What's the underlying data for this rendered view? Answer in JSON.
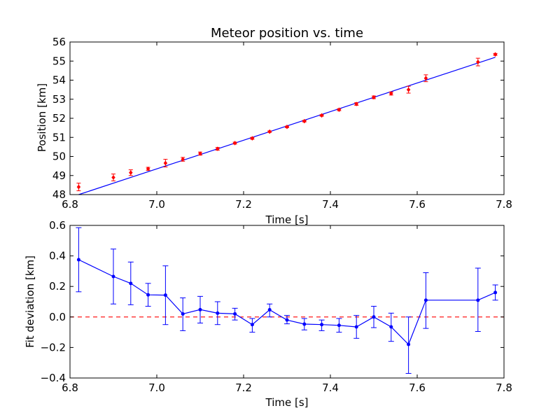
{
  "chart_data": [
    {
      "type": "scatter",
      "title": "Meteor position vs. time",
      "xlabel": "Time [s]",
      "ylabel": "Position [km]",
      "xlim": [
        6.8,
        7.8
      ],
      "ylim": [
        48,
        56
      ],
      "xticks": [
        "6.8",
        "7.0",
        "7.2",
        "7.4",
        "7.6",
        "7.8"
      ],
      "yticks": [
        "48",
        "49",
        "50",
        "51",
        "52",
        "53",
        "54",
        "55",
        "56"
      ],
      "grid": false,
      "colors": {
        "points": "#ff0000",
        "fit": "#0000ff"
      },
      "series": [
        {
          "marker": "red-diamond-with-errorbars",
          "points": [
            {
              "x": 6.82,
              "y": 48.4,
              "err": 0.2
            },
            {
              "x": 6.9,
              "y": 48.9,
              "err": 0.18
            },
            {
              "x": 6.94,
              "y": 49.15,
              "err": 0.15
            },
            {
              "x": 6.98,
              "y": 49.35,
              "err": 0.08
            },
            {
              "x": 7.02,
              "y": 49.65,
              "err": 0.2
            },
            {
              "x": 7.06,
              "y": 49.85,
              "err": 0.1
            },
            {
              "x": 7.1,
              "y": 50.15,
              "err": 0.08
            },
            {
              "x": 7.14,
              "y": 50.4,
              "err": 0.07
            },
            {
              "x": 7.18,
              "y": 50.7,
              "err": 0.05
            },
            {
              "x": 7.22,
              "y": 50.95,
              "err": 0.05
            },
            {
              "x": 7.26,
              "y": 51.3,
              "err": 0.04
            },
            {
              "x": 7.3,
              "y": 51.55,
              "err": 0.04
            },
            {
              "x": 7.34,
              "y": 51.85,
              "err": 0.04
            },
            {
              "x": 7.38,
              "y": 52.15,
              "err": 0.04
            },
            {
              "x": 7.42,
              "y": 52.45,
              "err": 0.05
            },
            {
              "x": 7.46,
              "y": 52.75,
              "err": 0.07
            },
            {
              "x": 7.5,
              "y": 53.1,
              "err": 0.07
            },
            {
              "x": 7.54,
              "y": 53.3,
              "err": 0.08
            },
            {
              "x": 7.58,
              "y": 53.5,
              "err": 0.18
            },
            {
              "x": 7.62,
              "y": 54.1,
              "err": 0.18
            },
            {
              "x": 7.74,
              "y": 54.95,
              "err": 0.2
            },
            {
              "x": 7.78,
              "y": 55.35,
              "err": 0.05
            }
          ]
        },
        {
          "line": "blue-fit-line",
          "x": [
            6.82,
            7.78
          ],
          "y": [
            48.0,
            55.2
          ]
        }
      ]
    },
    {
      "type": "line",
      "title": "",
      "xlabel": "Time [s]",
      "ylabel": "Fit deviation [km]",
      "xlim": [
        6.8,
        7.8
      ],
      "ylim": [
        -0.4,
        0.6
      ],
      "xticks": [
        "6.8",
        "7.0",
        "7.2",
        "7.4",
        "7.6",
        "7.8"
      ],
      "yticks": [
        "−0.4",
        "−0.2",
        "0.0",
        "0.2",
        "0.4",
        "0.6"
      ],
      "grid": false,
      "colors": {
        "line": "#0000ff",
        "zero": "#ff0000"
      },
      "reference_line": {
        "y": 0.0,
        "style": "dashed"
      },
      "series": [
        {
          "points": [
            {
              "x": 6.82,
              "y": 0.375,
              "lo": 0.165,
              "hi": 0.585
            },
            {
              "x": 6.9,
              "y": 0.265,
              "lo": 0.085,
              "hi": 0.445
            },
            {
              "x": 6.94,
              "y": 0.22,
              "lo": 0.08,
              "hi": 0.36
            },
            {
              "x": 6.98,
              "y": 0.145,
              "lo": 0.07,
              "hi": 0.22
            },
            {
              "x": 7.02,
              "y": 0.143,
              "lo": -0.05,
              "hi": 0.335
            },
            {
              "x": 7.06,
              "y": 0.02,
              "lo": -0.09,
              "hi": 0.125
            },
            {
              "x": 7.1,
              "y": 0.048,
              "lo": -0.04,
              "hi": 0.135
            },
            {
              "x": 7.14,
              "y": 0.025,
              "lo": -0.05,
              "hi": 0.1
            },
            {
              "x": 7.18,
              "y": 0.02,
              "lo": -0.02,
              "hi": 0.057
            },
            {
              "x": 7.22,
              "y": -0.05,
              "lo": -0.1,
              "hi": -0.01
            },
            {
              "x": 7.26,
              "y": 0.047,
              "lo": 0.0,
              "hi": 0.085
            },
            {
              "x": 7.3,
              "y": -0.02,
              "lo": -0.045,
              "hi": 0.01
            },
            {
              "x": 7.34,
              "y": -0.047,
              "lo": -0.085,
              "hi": -0.01
            },
            {
              "x": 7.38,
              "y": -0.05,
              "lo": -0.09,
              "hi": -0.02
            },
            {
              "x": 7.42,
              "y": -0.055,
              "lo": -0.1,
              "hi": -0.01
            },
            {
              "x": 7.46,
              "y": -0.065,
              "lo": -0.14,
              "hi": 0.01
            },
            {
              "x": 7.5,
              "y": 0.0,
              "lo": -0.07,
              "hi": 0.07
            },
            {
              "x": 7.54,
              "y": -0.065,
              "lo": -0.16,
              "hi": 0.025
            },
            {
              "x": 7.58,
              "y": -0.18,
              "lo": -0.37,
              "hi": 0.0
            },
            {
              "x": 7.62,
              "y": 0.11,
              "lo": -0.075,
              "hi": 0.29
            },
            {
              "x": 7.74,
              "y": 0.11,
              "lo": -0.095,
              "hi": 0.32
            },
            {
              "x": 7.78,
              "y": 0.16,
              "lo": 0.11,
              "hi": 0.21
            }
          ]
        }
      ]
    }
  ]
}
